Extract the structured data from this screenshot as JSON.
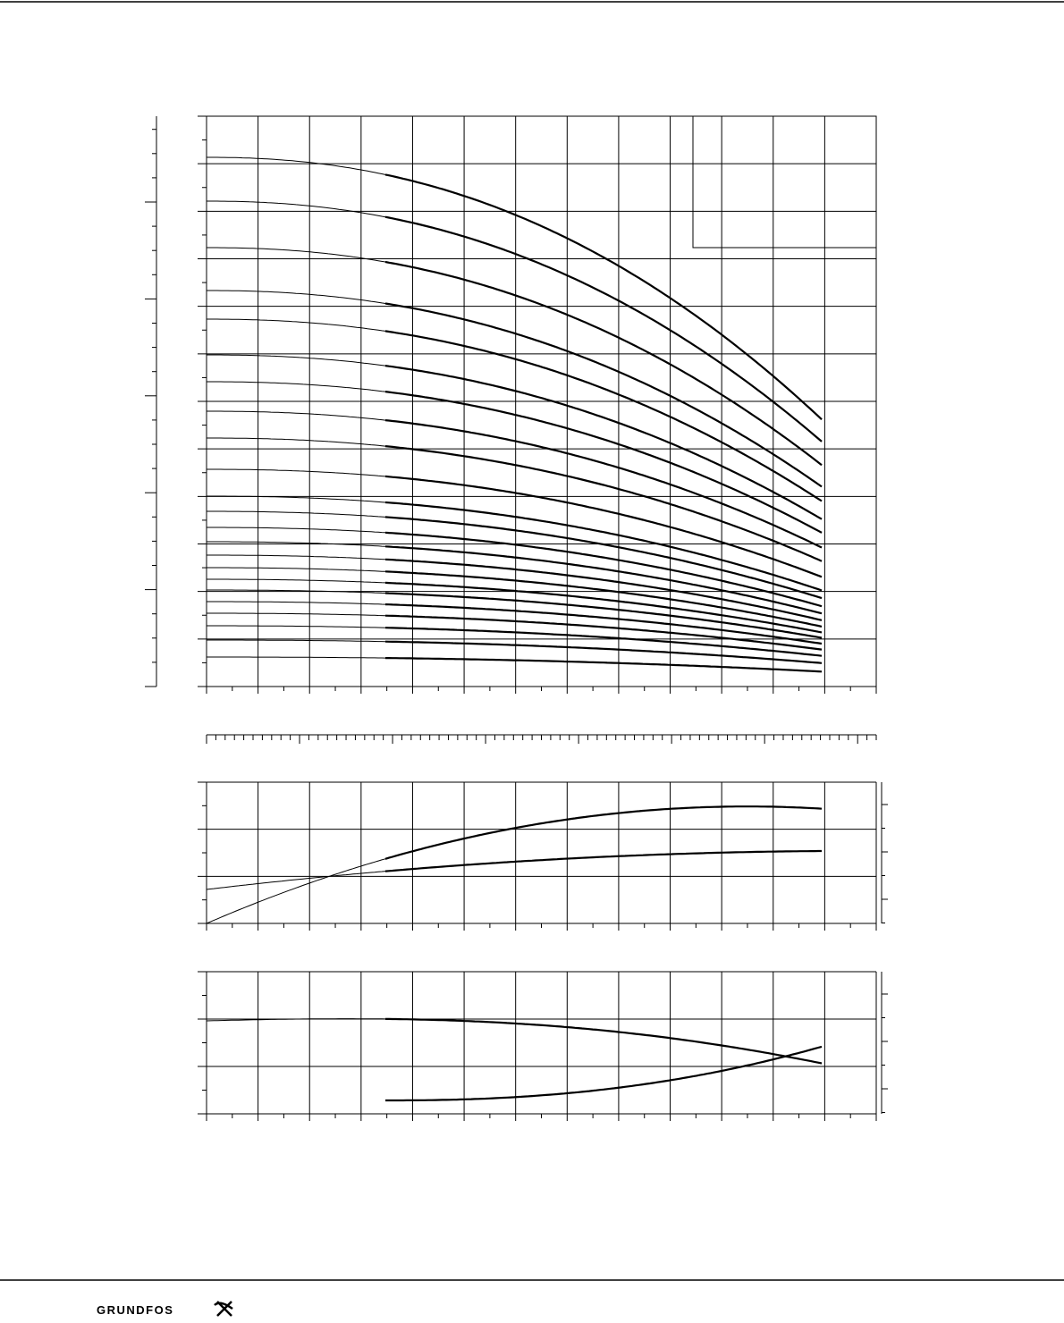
{
  "footer": {
    "logo": "GRUNDFOS"
  }
}
